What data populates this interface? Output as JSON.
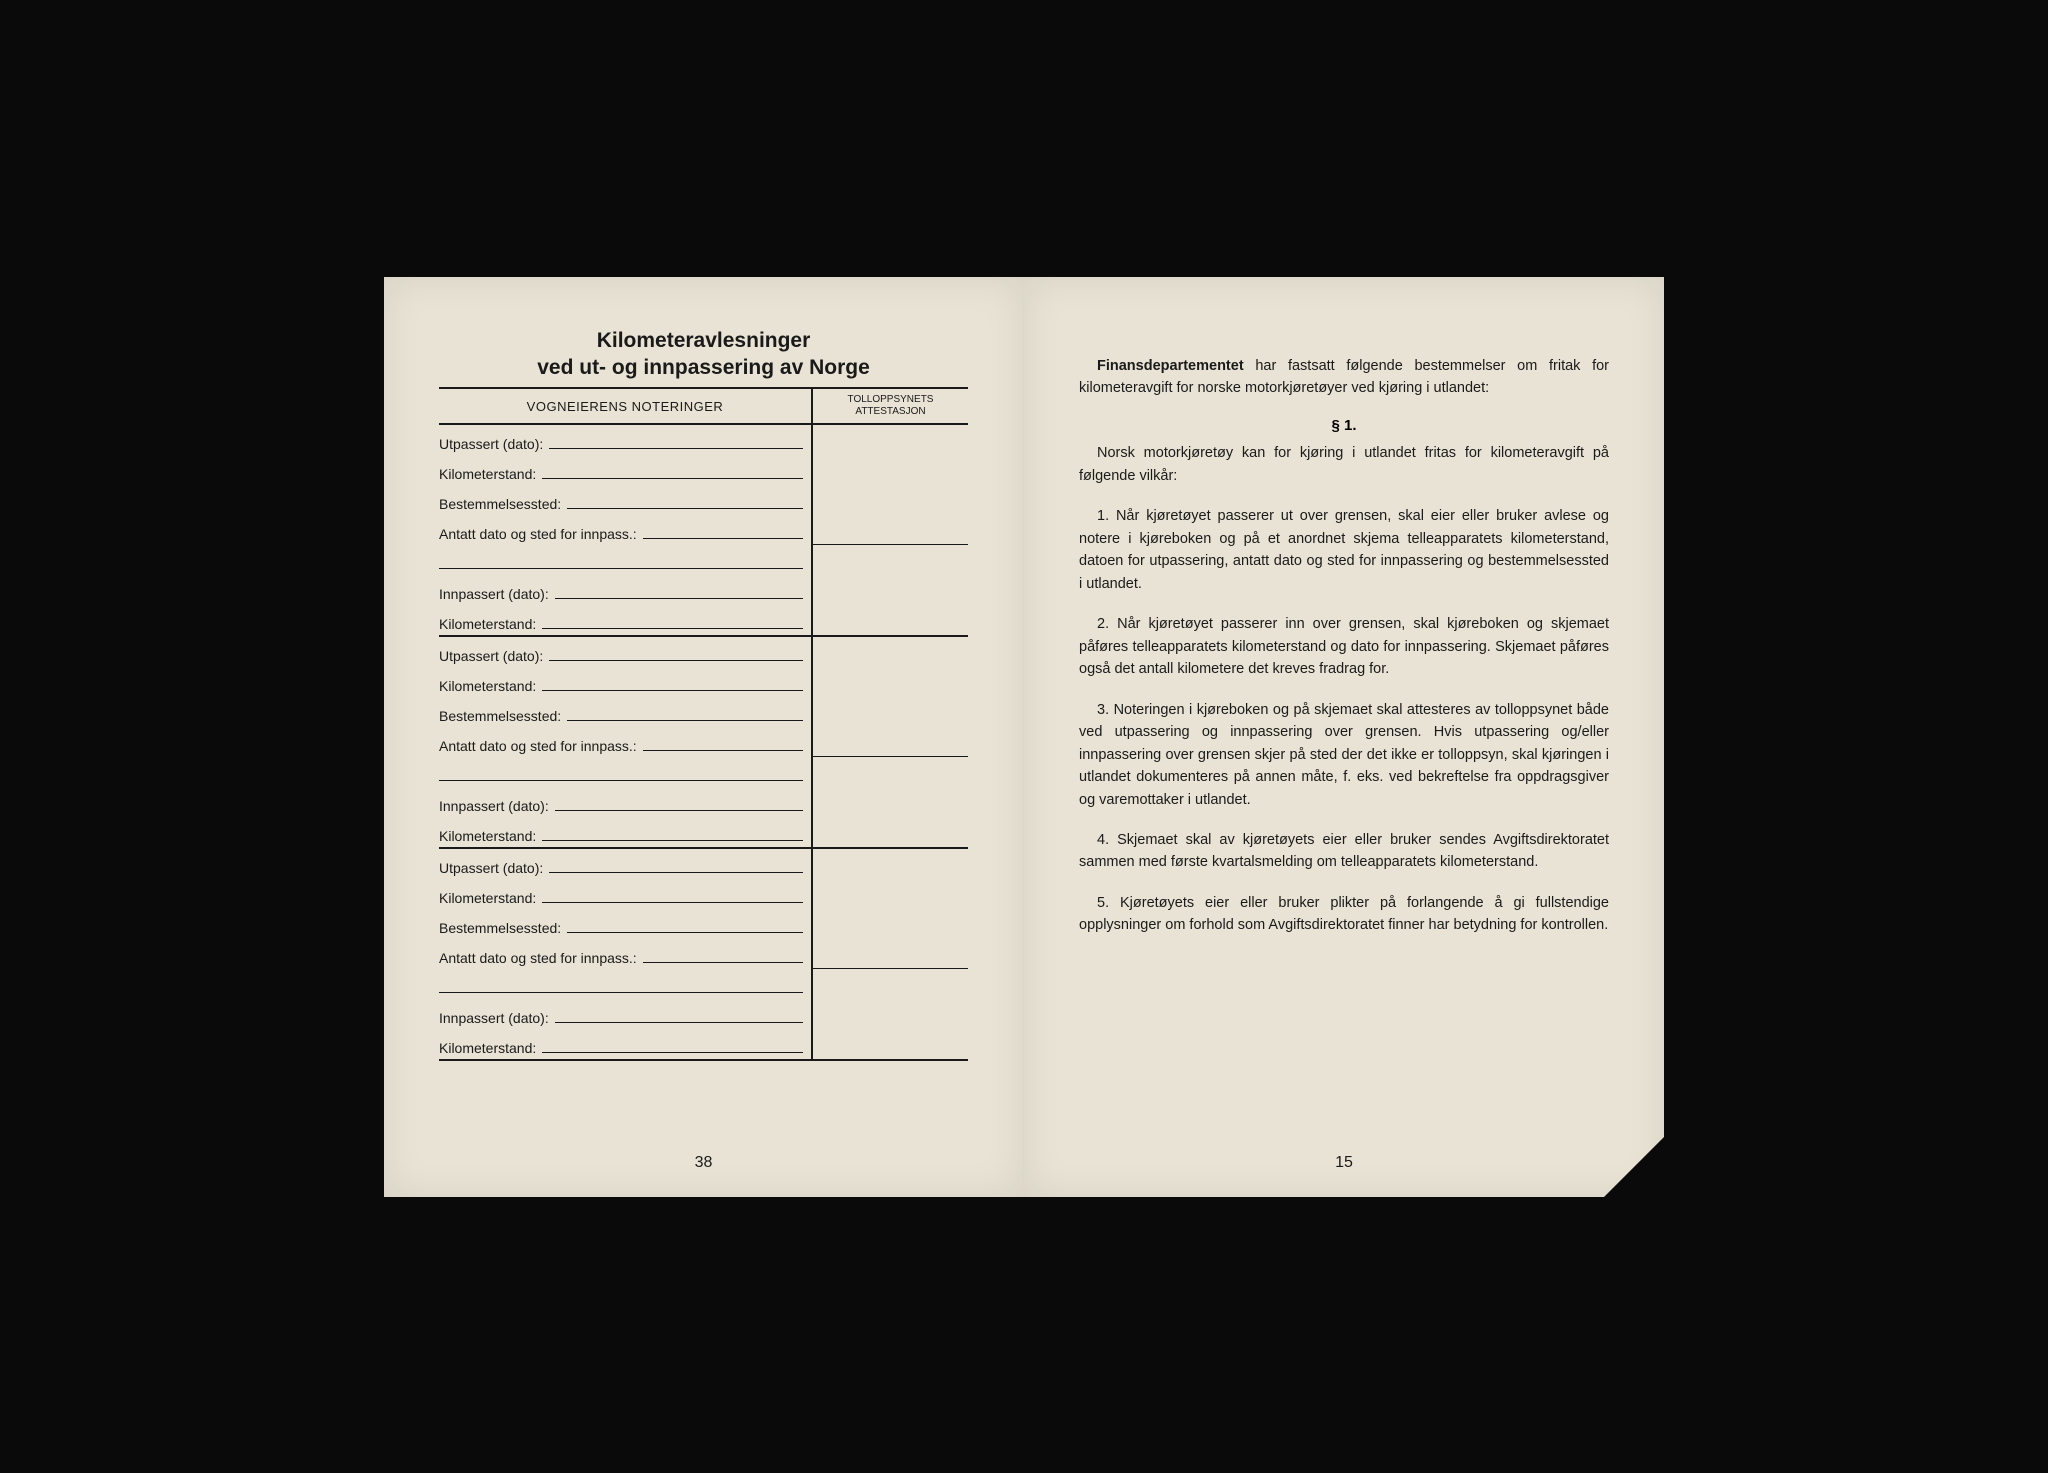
{
  "left": {
    "title_line1": "Kilometeravlesninger",
    "title_line2": "ved ut- og innpassering av Norge",
    "header_left": "VOGNEIERENS NOTERINGER",
    "header_right": "TOLLOPPSYNETS ATTESTASJON",
    "fields": {
      "utpassert": "Utpassert (dato):",
      "kilometerstand": "Kilometerstand:",
      "bestemmelsessted": "Bestemmelsessted:",
      "antatt": "Antatt dato og sted for innpass.:",
      "innpassert": "Innpassert (dato):"
    },
    "page_number": "38"
  },
  "right": {
    "intro_bold": "Finansdepartementet",
    "intro_rest": " har fastsatt følgende bestemmelser om fritak for kilometeravgift for norske motorkjøretøyer ved kjøring i utlandet:",
    "section": "§ 1.",
    "p0": "Norsk motorkjøretøy kan for kjøring i utlandet fritas for kilometeravgift på følgende vilkår:",
    "p1": "1. Når kjøretøyet passerer ut over grensen, skal eier eller bruker avlese og notere i kjøreboken og på et anordnet skjema telleapparatets kilometerstand, datoen for utpassering, antatt dato og sted for innpassering og bestemmelsessted i utlandet.",
    "p2": "2. Når kjøretøyet passerer inn over grensen, skal kjøreboken og skjemaet påføres telleapparatets kilometerstand og dato for innpassering. Skjemaet påføres også det antall kilometere det kreves fradrag for.",
    "p3": "3. Noteringen i kjøreboken og på skjemaet skal attesteres av tolloppsynet både ved utpassering og innpassering over grensen. Hvis utpassering og/eller innpassering over grensen skjer på sted der det ikke er tolloppsyn, skal kjøringen i utlandet dokumenteres på annen måte, f. eks. ved bekreftelse fra oppdragsgiver og varemottaker i utlandet.",
    "p4": "4. Skjemaet skal av kjøretøyets eier eller bruker sendes Avgiftsdirektoratet sammen med første kvartalsmelding om telleapparatets kilometerstand.",
    "p5": "5. Kjøretøyets eier eller bruker plikter på forlangende å gi fullstendige opplysninger om forhold som Avgiftsdirektoratet finner har betydning for kontrollen.",
    "page_number": "15"
  }
}
